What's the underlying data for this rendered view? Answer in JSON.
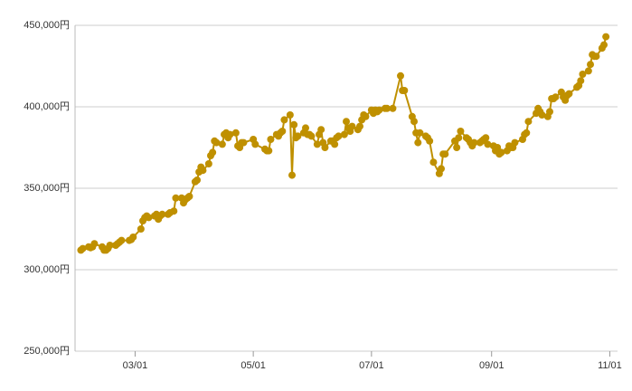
{
  "chart_data": {
    "type": "line",
    "color": "#bf9000",
    "grid": true,
    "x": [
      "02/01",
      "02/02",
      "02/05",
      "02/06",
      "02/07",
      "02/08",
      "02/12",
      "02/13",
      "02/14",
      "02/15",
      "02/16",
      "02/19",
      "02/20",
      "02/21",
      "02/22",
      "02/26",
      "02/27",
      "02/28",
      "03/04",
      "03/05",
      "03/06",
      "03/07",
      "03/08",
      "03/11",
      "03/12",
      "03/13",
      "03/14",
      "03/15",
      "03/18",
      "03/19",
      "03/21",
      "03/22",
      "03/25",
      "03/26",
      "03/27",
      "03/28",
      "03/29",
      "04/01",
      "04/02",
      "04/03",
      "04/04",
      "04/05",
      "04/08",
      "04/09",
      "04/10",
      "04/11",
      "04/12",
      "04/15",
      "04/16",
      "04/17",
      "04/18",
      "04/19",
      "04/22",
      "04/23",
      "04/24",
      "04/25",
      "04/26",
      "05/01",
      "05/02",
      "05/07",
      "05/08",
      "05/09",
      "05/10",
      "05/13",
      "05/14",
      "05/15",
      "05/16",
      "05/17",
      "05/20",
      "05/21",
      "05/22",
      "05/23",
      "05/24",
      "05/27",
      "05/28",
      "05/29",
      "05/30",
      "05/31",
      "06/03",
      "06/04",
      "06/05",
      "06/06",
      "06/07",
      "06/10",
      "06/11",
      "06/12",
      "06/13",
      "06/14",
      "06/17",
      "06/18",
      "06/19",
      "06/20",
      "06/21",
      "06/24",
      "06/25",
      "06/26",
      "06/27",
      "06/28",
      "07/01",
      "07/02",
      "07/03",
      "07/04",
      "07/05",
      "07/08",
      "07/09",
      "07/12",
      "07/16",
      "07/17",
      "07/18",
      "07/22",
      "07/23",
      "07/24",
      "07/25",
      "07/26",
      "07/29",
      "07/30",
      "07/31",
      "08/02",
      "08/05",
      "08/06",
      "08/07",
      "08/08",
      "08/13",
      "08/14",
      "08/15",
      "08/16",
      "08/19",
      "08/20",
      "08/21",
      "08/22",
      "08/23",
      "08/26",
      "08/27",
      "08/28",
      "08/29",
      "08/30",
      "09/02",
      "09/03",
      "09/04",
      "09/05",
      "09/06",
      "09/09",
      "09/10",
      "09/11",
      "09/12",
      "09/13",
      "09/17",
      "09/18",
      "09/19",
      "09/20",
      "09/24",
      "09/25",
      "09/26",
      "09/27",
      "09/30",
      "10/01",
      "10/02",
      "10/03",
      "10/04",
      "10/07",
      "10/08",
      "10/09",
      "10/10",
      "10/11",
      "10/15",
      "10/16",
      "10/17",
      "10/18",
      "10/21",
      "10/22",
      "10/23",
      "10/24",
      "10/25",
      "10/28",
      "10/29",
      "10/30"
    ],
    "values": [
      312000,
      313000,
      314000,
      313500,
      314000,
      316000,
      314000,
      312000,
      312000,
      313000,
      315000,
      315000,
      316000,
      317000,
      318000,
      318000,
      318500,
      320000,
      325000,
      330000,
      332000,
      333000,
      332000,
      333000,
      334000,
      331000,
      333000,
      334000,
      334000,
      335000,
      336000,
      344000,
      344000,
      341000,
      343000,
      344000,
      345000,
      354000,
      355000,
      360000,
      363000,
      361000,
      365000,
      370000,
      372000,
      379000,
      378000,
      377000,
      383000,
      384000,
      381000,
      383000,
      384000,
      376000,
      375000,
      378000,
      378000,
      380000,
      377000,
      374000,
      373000,
      373000,
      380000,
      383000,
      382000,
      384000,
      385000,
      392000,
      395000,
      358000,
      389000,
      381000,
      382000,
      384000,
      387000,
      383000,
      383000,
      382000,
      377000,
      383000,
      386000,
      378000,
      375000,
      379000,
      379000,
      377000,
      381000,
      382000,
      383000,
      391000,
      387000,
      385000,
      388000,
      386000,
      388000,
      392000,
      395000,
      394000,
      398000,
      396000,
      398000,
      397000,
      398000,
      399000,
      399000,
      399000,
      419000,
      410000,
      410000,
      394000,
      391000,
      384000,
      378000,
      384000,
      382000,
      381000,
      379000,
      366000,
      359000,
      362000,
      371000,
      371000,
      379000,
      375000,
      381000,
      385000,
      381000,
      380000,
      378000,
      376000,
      378000,
      378000,
      379000,
      380000,
      381000,
      377000,
      376000,
      373000,
      375000,
      371000,
      372000,
      373000,
      376000,
      375000,
      375000,
      378000,
      380000,
      383000,
      384000,
      391000,
      396000,
      399000,
      397000,
      395000,
      394000,
      397000,
      405000,
      405000,
      406000,
      409000,
      406000,
      404000,
      407000,
      408000,
      412000,
      413000,
      416000,
      420000,
      422000,
      426000,
      432000,
      431000,
      431000,
      436000,
      438000,
      443000
    ],
    "xlim": [
      "01/29",
      "11/05"
    ],
    "xticks": [
      "03/01",
      "05/01",
      "07/01",
      "09/01",
      "11/01"
    ],
    "ylim": [
      250000,
      450000
    ],
    "yticks": [
      {
        "value": 250000,
        "label": "250,000円"
      },
      {
        "value": 300000,
        "label": "300,000円"
      },
      {
        "value": 350000,
        "label": "350,000円"
      },
      {
        "value": 400000,
        "label": "400,000円"
      },
      {
        "value": 450000,
        "label": "450,000円"
      }
    ]
  }
}
